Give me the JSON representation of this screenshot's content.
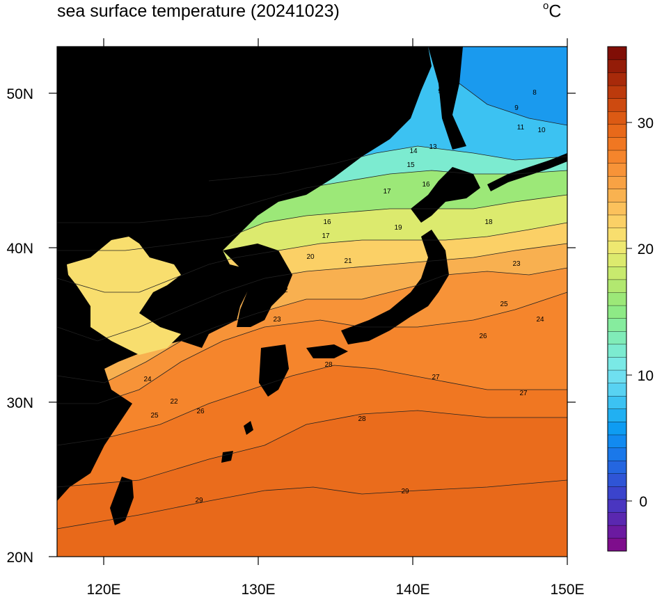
{
  "title": "sea surface temperature (20241023)",
  "unit_main": "C",
  "unit_sup": "o",
  "map": {
    "x_ticks": [
      "120E",
      "130E",
      "140E",
      "150E"
    ],
    "y_ticks": [
      "50N",
      "40N",
      "30N",
      "20N"
    ],
    "lon_range": [
      117,
      150
    ],
    "lat_range": [
      20,
      53
    ],
    "contour_labels": [
      "9",
      "8",
      "9",
      "11",
      "10",
      "14",
      "13",
      "15",
      "16",
      "17",
      "18",
      "19",
      "16",
      "17",
      "20",
      "21",
      "22",
      "23",
      "20",
      "18",
      "24",
      "25",
      "26",
      "27",
      "28",
      "29",
      "25",
      "23",
      "22",
      "24",
      "26",
      "27",
      "28",
      "29"
    ]
  },
  "colorbar": {
    "tick_labels": [
      "30",
      "20",
      "10",
      "0"
    ],
    "range": [
      -4,
      36
    ],
    "colors": [
      "#7e0d8c",
      "#6b1aa0",
      "#5a28b0",
      "#4a36c0",
      "#3b44cc",
      "#2f55d6",
      "#2466e0",
      "#1a78ea",
      "#128af0",
      "#0e9cf2",
      "#21b0f2",
      "#3cc2f2",
      "#58d2f2",
      "#6fdff0",
      "#7ae9e6",
      "#7cebd0",
      "#80ecb8",
      "#86ec9e",
      "#8eea86",
      "#9ce878",
      "#b2e870",
      "#c8ea6e",
      "#dcea6e",
      "#eee870",
      "#f8de6e",
      "#fbd066",
      "#fbc15c",
      "#f9b250",
      "#f8a244",
      "#f79338",
      "#f5852c",
      "#f07722",
      "#e8691a",
      "#dc5a14",
      "#cd4a10",
      "#bc3a0c",
      "#a82a0a",
      "#941c08",
      "#800e06"
    ],
    "color_labels": {
      "colorbar_min": "#7e0d8c",
      "colorbar_max": "#800e06"
    }
  }
}
